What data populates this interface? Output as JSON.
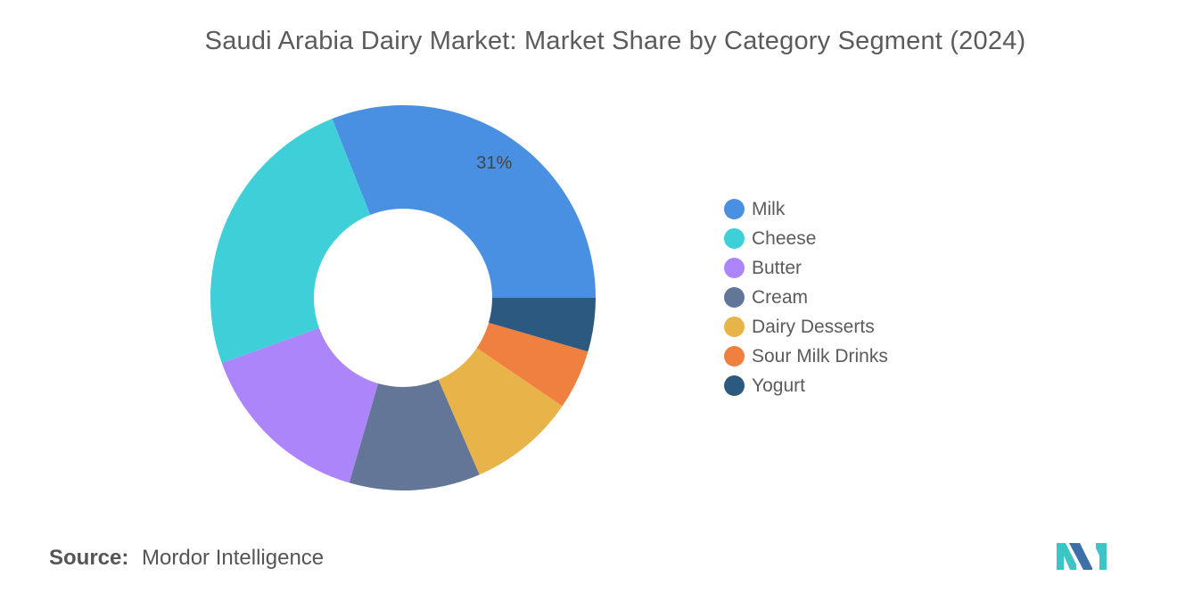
{
  "title": "Saudi Arabia Dairy Market: Market Share by Category Segment (2024)",
  "source": {
    "label": "Source:",
    "value": "Mordor Intelligence"
  },
  "chart_data": {
    "type": "pie",
    "donut": true,
    "title": "Saudi Arabia Dairy Market: Market Share by Category Segment (2024)",
    "legend_position": "right",
    "slices": [
      {
        "label": "Milk",
        "value": 31,
        "color": "#4a90e2",
        "data_label": "31%"
      },
      {
        "label": "Cheese",
        "value": 24.5,
        "color": "#3ecfd9",
        "data_label": ""
      },
      {
        "label": "Butter",
        "value": 15,
        "color": "#ad85fa",
        "data_label": ""
      },
      {
        "label": "Cream",
        "value": 11,
        "color": "#637697",
        "data_label": ""
      },
      {
        "label": "Dairy Desserts",
        "value": 9,
        "color": "#e8b44a",
        "data_label": ""
      },
      {
        "label": "Sour Milk Drinks",
        "value": 5,
        "color": "#f08040",
        "data_label": ""
      },
      {
        "label": "Yogurt",
        "value": 4.5,
        "color": "#2c5980",
        "data_label": ""
      }
    ]
  },
  "logo": {
    "colors": [
      "#3e6fa8",
      "#3ec4c4"
    ]
  }
}
